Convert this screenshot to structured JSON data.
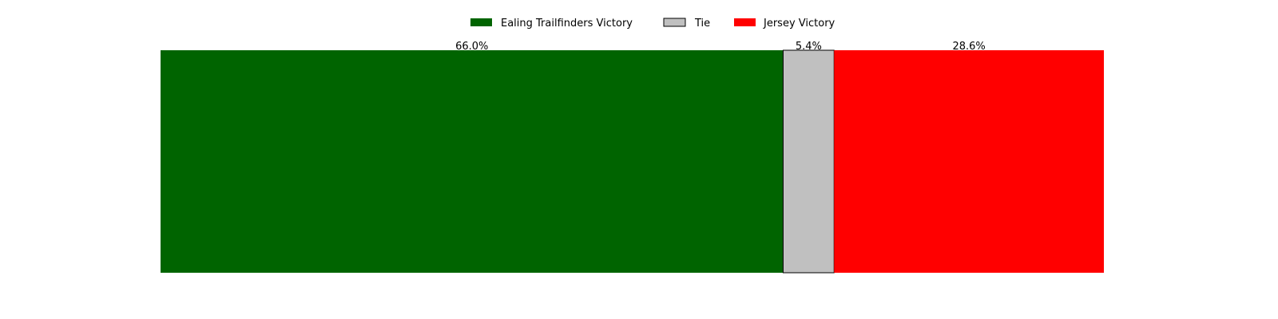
{
  "chart_data": {
    "type": "bar",
    "orientation": "horizontal-stacked",
    "total": 100,
    "series": [
      {
        "name": "Ealing Trailfinders Victory",
        "value": 66.0,
        "label": "66.0%",
        "color": "#006400"
      },
      {
        "name": "Tie",
        "value": 5.4,
        "label": "5.4%",
        "color": "#c0c0c0"
      },
      {
        "name": "Jersey Victory",
        "value": 28.6,
        "label": "28.6%",
        "color": "#ff0000"
      }
    ],
    "legend_position": "top-center",
    "grid": false,
    "axes_visible": false
  }
}
